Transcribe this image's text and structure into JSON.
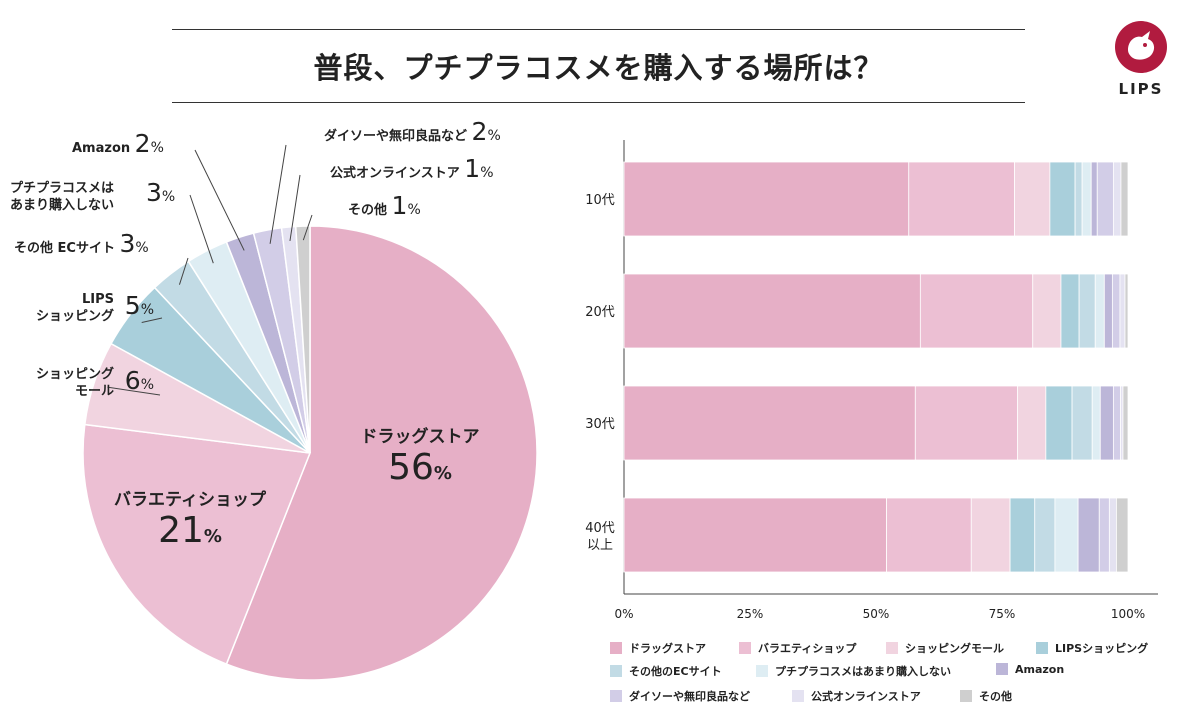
{
  "title": "普段、プチプラコスメを購入する場所は？",
  "logo": {
    "text": "LIPS"
  },
  "colors": [
    "#e6afc6",
    "#ecbfd3",
    "#f1d4e0",
    "#a9cfdb",
    "#c2dbe5",
    "#deedf3",
    "#bcb6d8",
    "#d2cde7",
    "#e4e2f1",
    "#cfcfcf"
  ],
  "chart_data": [
    {
      "type": "pie",
      "title": "普段、プチプラコスメを購入する場所は？",
      "slices": [
        {
          "label": "ドラッグストア",
          "value": 56
        },
        {
          "label": "バラエティショップ",
          "value": 21
        },
        {
          "label": "ショッピングモール",
          "value": 6
        },
        {
          "label": "LIPSショッピング",
          "value": 5
        },
        {
          "label": "その他ECサイト",
          "value": 3
        },
        {
          "label": "プチプラコスメはあまり購入しない",
          "value": 3
        },
        {
          "label": "Amazon",
          "value": 2
        },
        {
          "label": "ダイソーや無印良品など",
          "value": 2
        },
        {
          "label": "公式オンラインストア",
          "value": 1
        },
        {
          "label": "その他",
          "value": 1
        }
      ],
      "labels_text": {
        "drugstore_name": "ドラッグストア",
        "drugstore_val": "56",
        "variety_name": "バラエティショップ",
        "variety_val": "21",
        "mall_l1": "ショッピング",
        "mall_l2": "モール",
        "mall_val": "6",
        "lips_l1": "LIPS",
        "lips_l2": "ショッピング",
        "lips_val": "5",
        "ec_name": "その他 ECサイト",
        "ec_val": "3",
        "notbuy_l1": "プチプラコスメは",
        "notbuy_l2": "あまり購入しない",
        "notbuy_val": "3",
        "amazon_name": "Amazon",
        "amazon_val": "2",
        "daiso_name": "ダイソーや無印良品など",
        "daiso_val": "2",
        "official_name": "公式オンラインストア",
        "official_val": "1",
        "other_name": "その他",
        "other_val": "1",
        "pct": "%"
      }
    },
    {
      "type": "bar",
      "orientation": "horizontal",
      "stacked": true,
      "categories": [
        "10代",
        "20代",
        "30代",
        "40代\n以上"
      ],
      "xlim": [
        0,
        100
      ],
      "xticks": [
        "0%",
        "25%",
        "50%",
        "75%",
        "100%"
      ],
      "series": [
        {
          "name": "ドラッグストア",
          "values": [
            56.5,
            58.8,
            57.8,
            52.1
          ]
        },
        {
          "name": "バラエティショップ",
          "values": [
            21.0,
            22.3,
            20.3,
            16.8
          ]
        },
        {
          "name": "ショッピングモール",
          "values": [
            7.0,
            5.6,
            5.6,
            7.7
          ]
        },
        {
          "name": "LIPSショッピング",
          "values": [
            5.0,
            3.6,
            5.2,
            4.9
          ]
        },
        {
          "name": "その他のECサイト",
          "values": [
            1.4,
            3.2,
            4.0,
            4.0
          ]
        },
        {
          "name": "プチプラコスメはあまり購入しない",
          "values": [
            1.8,
            1.8,
            1.6,
            4.6
          ]
        },
        {
          "name": "Amazon",
          "values": [
            1.2,
            1.6,
            2.6,
            4.2
          ]
        },
        {
          "name": "ダイソーや無印良品など",
          "values": [
            3.2,
            1.5,
            1.4,
            2.0
          ]
        },
        {
          "name": "公式オンラインストア",
          "values": [
            1.5,
            1.0,
            0.5,
            1.4
          ]
        },
        {
          "name": "その他",
          "values": [
            1.4,
            0.6,
            1.0,
            2.3
          ]
        }
      ]
    }
  ]
}
